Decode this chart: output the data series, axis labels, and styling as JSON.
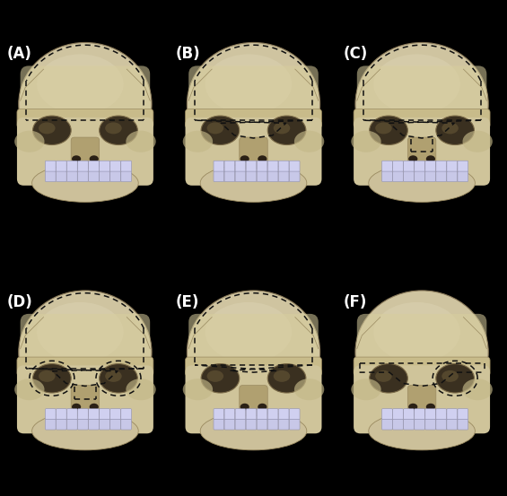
{
  "background_color": "#000000",
  "label_color": "#ffffff",
  "label_fontsize": 12,
  "labels": [
    "(A)",
    "(B)",
    "(C)",
    "(D)",
    "(E)",
    "(F)"
  ],
  "panel_ids": [
    "A",
    "B",
    "C",
    "D",
    "E",
    "F"
  ],
  "figure_width": 5.65,
  "figure_height": 5.53,
  "dpi": 100,
  "skull_base": "#cfc4a0",
  "skull_highlight": "#ddd5b5",
  "skull_mid": "#c8bb8a",
  "skull_dark": "#8a7a5a",
  "skull_edge": "#9a8a60",
  "eye_dark": "#3a3020",
  "eye_edge": "#7a6a48",
  "eye_hl": "#6a5a38",
  "nose_color": "#b0a070",
  "jaw_color": "#ccc09a",
  "teeth_upper": "#d0d0f0",
  "teeth_lower": "#c8c8e8",
  "teeth_edge": "#9090b0",
  "midface_color": "#cfc49a",
  "cheek_color": "#c4b888",
  "temporal_color": "#9a8a60",
  "dash_color": "#111111",
  "panel_bg": "#050505"
}
